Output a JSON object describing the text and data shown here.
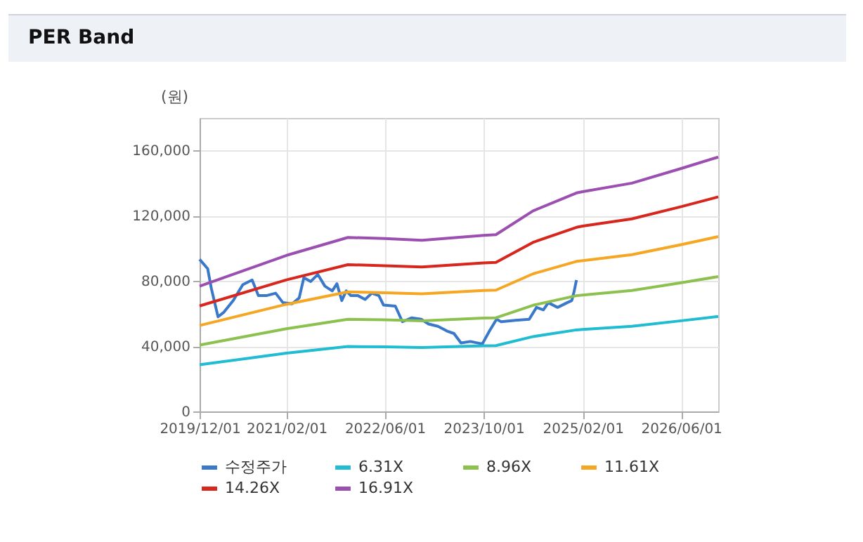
{
  "chart_data": {
    "type": "line",
    "title": "PER Band",
    "ylabel": "(원)",
    "xlim": [
      "2019-12-01",
      "2026-12-01"
    ],
    "xticks": [
      {
        "value": "2019-12-01",
        "label": "2019/12/01"
      },
      {
        "value": "2021-02-01",
        "label": "2021/02/01"
      },
      {
        "value": "2022-06-01",
        "label": "2022/06/01"
      },
      {
        "value": "2023-10-01",
        "label": "2023/10/01"
      },
      {
        "value": "2025-02-01",
        "label": "2025/02/01"
      },
      {
        "value": "2026-06-01",
        "label": "2026/06/01"
      }
    ],
    "ylim": [
      0,
      180000
    ],
    "yticks": [
      {
        "value": 0,
        "label": "0"
      },
      {
        "value": 40000,
        "label": "40,000"
      },
      {
        "value": 80000,
        "label": "80,000"
      },
      {
        "value": 120000,
        "label": "120,000"
      },
      {
        "value": 160000,
        "label": "160,000"
      }
    ],
    "grid": true,
    "legend": "bottom",
    "series": [
      {
        "name": "수정주가",
        "color": "#3a78c9",
        "x": [
          "2019-12-01",
          "2020-01-10",
          "2020-01-28",
          "2020-03-01",
          "2020-03-30",
          "2020-05-15",
          "2020-07-01",
          "2020-08-16",
          "2020-09-16",
          "2020-10-25",
          "2020-12-10",
          "2021-01-15",
          "2021-03-01",
          "2021-04-05",
          "2021-04-28",
          "2021-06-01",
          "2021-07-06",
          "2021-08-10",
          "2021-09-15",
          "2021-10-08",
          "2021-11-01",
          "2021-11-23",
          "2021-12-16",
          "2022-01-20",
          "2022-02-24",
          "2022-03-29",
          "2022-05-03",
          "2022-05-26",
          "2022-07-23",
          "2022-08-27",
          "2022-10-12",
          "2022-11-28",
          "2023-01-03",
          "2023-02-18",
          "2023-04-04",
          "2023-05-08",
          "2023-06-12",
          "2023-07-28",
          "2023-09-25",
          "2023-10-30",
          "2023-12-04",
          "2023-12-27",
          "2024-03-05",
          "2024-05-13",
          "2024-06-18",
          "2024-07-22",
          "2024-08-15",
          "2024-09-30",
          "2024-11-16",
          "2024-12-09",
          "2024-12-20",
          "2025-01-01"
        ],
        "values": [
          93300,
          87500,
          75400,
          58000,
          60900,
          68000,
          77700,
          80600,
          71000,
          71000,
          72500,
          66700,
          66000,
          69600,
          82000,
          79700,
          84000,
          76800,
          73900,
          78300,
          68000,
          73900,
          71000,
          71000,
          68700,
          72500,
          71000,
          65200,
          64600,
          55000,
          57400,
          56500,
          53600,
          52200,
          49300,
          47800,
          42000,
          42900,
          41400,
          49300,
          56500,
          55000,
          55900,
          56500,
          63800,
          62300,
          66700,
          63800,
          66700,
          68000,
          73300,
          80600
        ]
      },
      {
        "name": "6.31X",
        "color": "#1fbcd2",
        "x": [
          "2019-12-01",
          "2021-02-01",
          "2021-12-01",
          "2022-06-01",
          "2022-12-01",
          "2023-10-01",
          "2023-12-01",
          "2024-06-01",
          "2025-01-01",
          "2025-02-01",
          "2025-10-01",
          "2026-06-01",
          "2026-12-01"
        ],
        "values": [
          28600,
          35700,
          39800,
          39600,
          39200,
          40300,
          40400,
          45900,
          50000,
          50300,
          52200,
          55600,
          58200
        ]
      },
      {
        "name": "8.96X",
        "color": "#8dc14f",
        "x": [
          "2019-12-01",
          "2021-02-01",
          "2021-12-01",
          "2022-06-01",
          "2022-12-01",
          "2023-10-01",
          "2023-12-01",
          "2024-06-01",
          "2025-01-01",
          "2025-02-01",
          "2025-10-01",
          "2026-06-01",
          "2026-12-01"
        ],
        "values": [
          40700,
          50700,
          56500,
          56200,
          55600,
          57300,
          57400,
          65100,
          71000,
          71400,
          74200,
          78900,
          82700
        ]
      },
      {
        "name": "11.61X",
        "color": "#f5a623",
        "x": [
          "2019-12-01",
          "2021-02-01",
          "2021-12-01",
          "2022-06-01",
          "2022-12-01",
          "2023-10-01",
          "2023-12-01",
          "2024-06-01",
          "2025-01-01",
          "2025-02-01",
          "2025-10-01",
          "2026-06-01",
          "2026-12-01"
        ],
        "values": [
          52700,
          65700,
          73300,
          72800,
          72100,
          74200,
          74400,
          84400,
          92000,
          92500,
          96100,
          102300,
          107200
        ]
      },
      {
        "name": "14.26X",
        "color": "#d7261e",
        "x": [
          "2019-12-01",
          "2021-02-01",
          "2021-12-01",
          "2022-06-01",
          "2022-12-01",
          "2023-10-01",
          "2023-12-01",
          "2024-06-01",
          "2025-01-01",
          "2025-02-01",
          "2025-10-01",
          "2026-06-01",
          "2026-12-01"
        ],
        "values": [
          64700,
          80700,
          90000,
          89400,
          88600,
          91100,
          91400,
          103700,
          112900,
          113700,
          118100,
          125600,
          131600
        ]
      },
      {
        "name": "16.91X",
        "color": "#9b4fb0",
        "x": [
          "2019-12-01",
          "2021-02-01",
          "2021-12-01",
          "2022-06-01",
          "2022-12-01",
          "2023-10-01",
          "2023-12-01",
          "2024-06-01",
          "2025-01-01",
          "2025-02-01",
          "2025-10-01",
          "2026-06-01",
          "2026-12-01"
        ],
        "values": [
          76800,
          95700,
          106700,
          106000,
          105000,
          108000,
          108400,
          123000,
          134000,
          134800,
          140000,
          149000,
          156000
        ]
      }
    ]
  }
}
